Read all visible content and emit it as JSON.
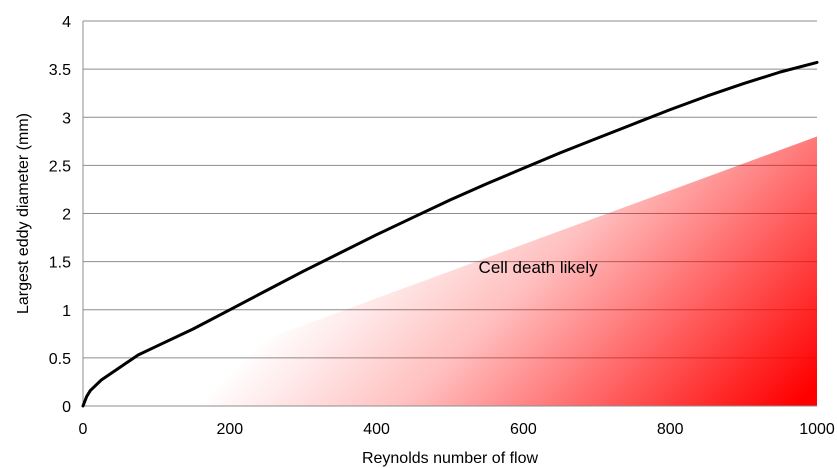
{
  "chart_data": {
    "type": "line",
    "title": "",
    "xlabel": "Reynolds number of flow",
    "ylabel": "Largest eddy diameter (mm)",
    "xlim": [
      0,
      1000
    ],
    "ylim": [
      0,
      4
    ],
    "x_ticks": [
      "0",
      "200",
      "400",
      "600",
      "800",
      "1000"
    ],
    "y_ticks": [
      "0",
      "0.5",
      "1",
      "1.5",
      "2",
      "2.5",
      "3",
      "3.5",
      "4"
    ],
    "grid": "horizontal",
    "series": [
      {
        "color": "#000000",
        "x": [
          0,
          5,
          10,
          25,
          50,
          75,
          100,
          150,
          200,
          250,
          300,
          350,
          400,
          450,
          500,
          550,
          600,
          650,
          700,
          750,
          800,
          850,
          900,
          950,
          1000
        ],
        "y": [
          0,
          0.1,
          0.16,
          0.27,
          0.4,
          0.53,
          0.62,
          0.8,
          1.0,
          1.2,
          1.4,
          1.59,
          1.78,
          1.96,
          2.14,
          2.31,
          2.47,
          2.63,
          2.78,
          2.93,
          3.08,
          3.22,
          3.35,
          3.47,
          3.57
        ]
      }
    ],
    "annotations": [
      {
        "text": "Cell death likely",
        "x": 620,
        "y": 1.38
      }
    ],
    "region": {
      "label_ref": "Cell death likely",
      "color": "#ff0000",
      "upper_boundary_x": [
        0,
        1000
      ],
      "upper_boundary_y": [
        0,
        2.8
      ]
    }
  }
}
